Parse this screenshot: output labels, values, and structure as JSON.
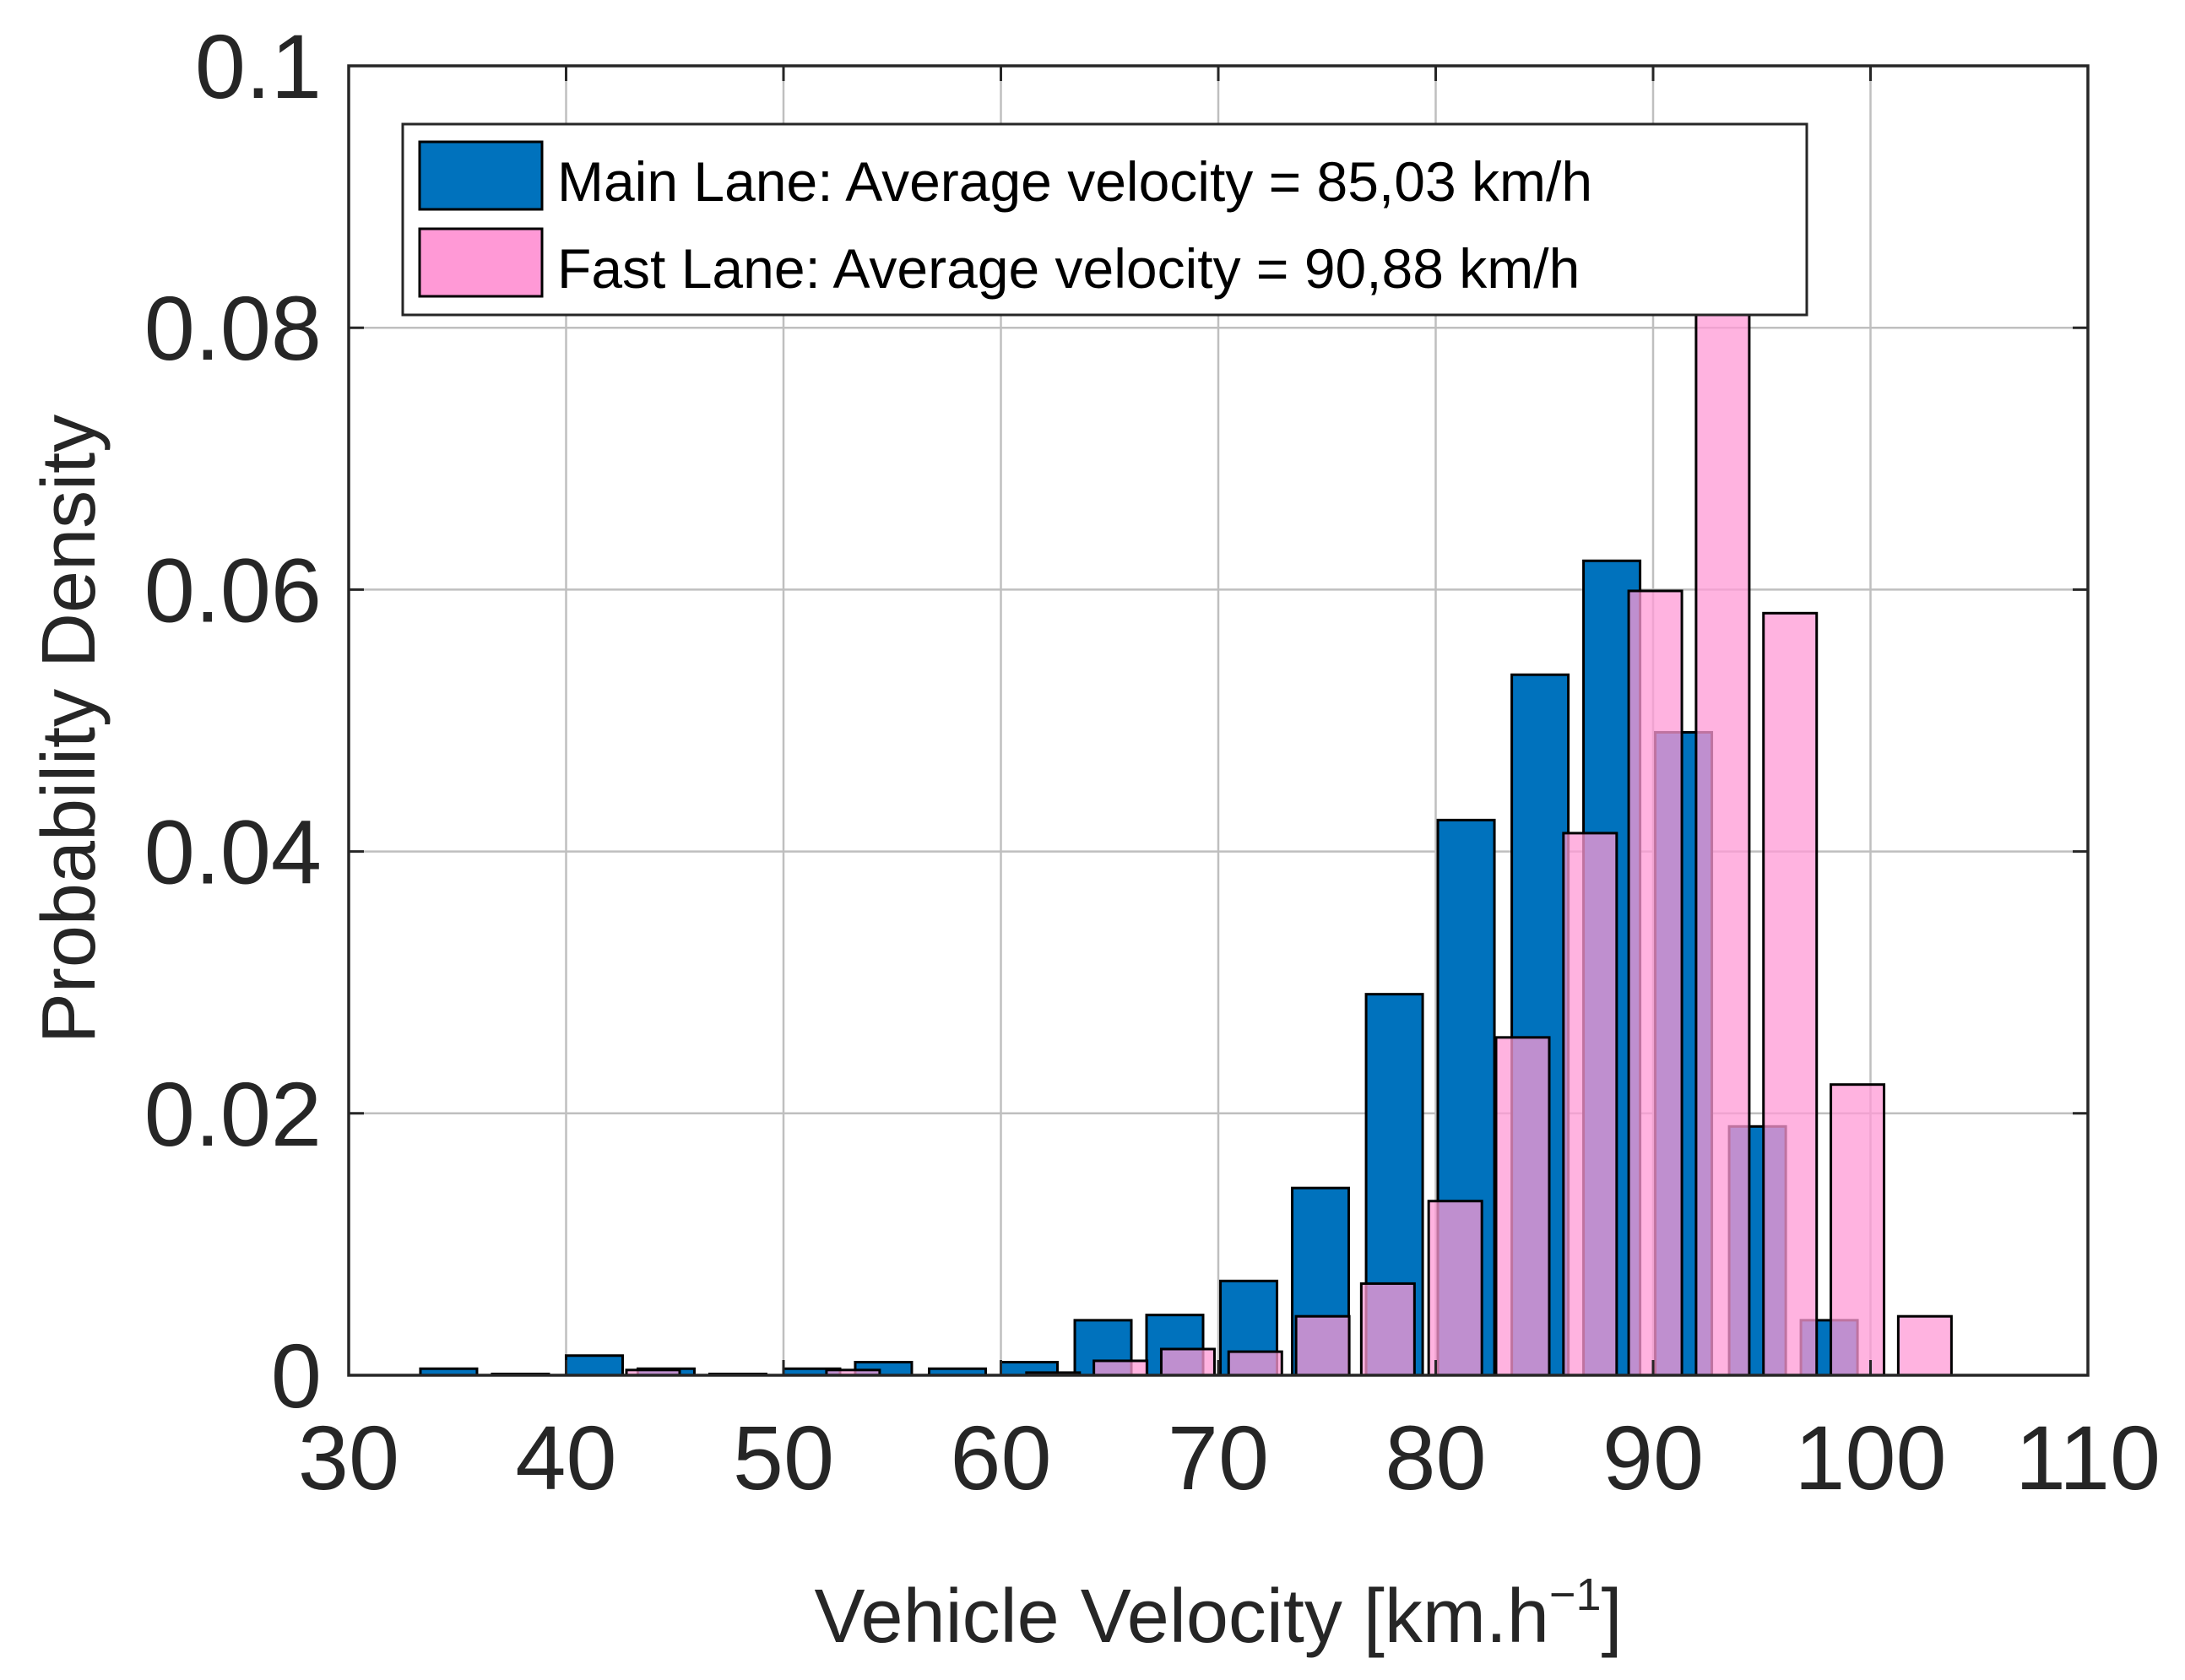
{
  "chart_data": {
    "type": "bar",
    "subtype": "histogram",
    "title": "",
    "xlabel": "Vehicle Velocity  [km.h",
    "xlabel_superscript": "−1",
    "xlabel_suffix": "]",
    "ylabel": "Probability Density",
    "xlim": [
      30,
      110
    ],
    "ylim": [
      0,
      0.1
    ],
    "x_ticks": [
      "30",
      "40",
      "50",
      "60",
      "70",
      "80",
      "90",
      "100",
      "110"
    ],
    "y_ticks": [
      "0",
      "0.02",
      "0.04",
      "0.06",
      "0.08",
      "0.1"
    ],
    "grid": true,
    "legend_position": "top-left",
    "series": [
      {
        "name": "Main Lane: Average velocity = 85,03 km/h",
        "color": "#0072BD",
        "opacity": 1.0,
        "bins": [
          {
            "x": 34.6,
            "value": 0.0005
          },
          {
            "x": 37.9,
            "value": 0.0001
          },
          {
            "x": 41.3,
            "value": 0.0015
          },
          {
            "x": 44.6,
            "value": 0.0005
          },
          {
            "x": 47.9,
            "value": 0.0001
          },
          {
            "x": 51.3,
            "value": 0.0005
          },
          {
            "x": 54.6,
            "value": 0.001
          },
          {
            "x": 58.0,
            "value": 0.0005
          },
          {
            "x": 61.3,
            "value": 0.001
          },
          {
            "x": 64.7,
            "value": 0.0042
          },
          {
            "x": 68.0,
            "value": 0.0046
          },
          {
            "x": 71.4,
            "value": 0.0072
          },
          {
            "x": 74.7,
            "value": 0.0143
          },
          {
            "x": 78.1,
            "value": 0.0291
          },
          {
            "x": 81.4,
            "value": 0.0424
          },
          {
            "x": 84.8,
            "value": 0.0535
          },
          {
            "x": 88.1,
            "value": 0.0622
          },
          {
            "x": 91.4,
            "value": 0.0491
          },
          {
            "x": 94.8,
            "value": 0.019
          },
          {
            "x": 98.1,
            "value": 0.0042
          }
        ]
      },
      {
        "name": "Fast Lane: Average velocity = 90,88 km/h",
        "color": "#FF99D6",
        "opacity": 0.75,
        "bins": [
          {
            "x": 44.0,
            "value": 0.0004
          },
          {
            "x": 53.2,
            "value": 0.0004
          },
          {
            "x": 62.4,
            "value": 0.0002
          },
          {
            "x": 65.5,
            "value": 0.0011
          },
          {
            "x": 68.6,
            "value": 0.002
          },
          {
            "x": 71.7,
            "value": 0.0018
          },
          {
            "x": 74.8,
            "value": 0.0045
          },
          {
            "x": 77.8,
            "value": 0.007
          },
          {
            "x": 80.9,
            "value": 0.0133
          },
          {
            "x": 84.0,
            "value": 0.0258
          },
          {
            "x": 87.1,
            "value": 0.0414
          },
          {
            "x": 90.1,
            "value": 0.0599
          },
          {
            "x": 93.2,
            "value": 0.0815
          },
          {
            "x": 96.3,
            "value": 0.0582
          },
          {
            "x": 99.4,
            "value": 0.0222
          },
          {
            "x": 102.5,
            "value": 0.0045
          }
        ]
      }
    ]
  }
}
